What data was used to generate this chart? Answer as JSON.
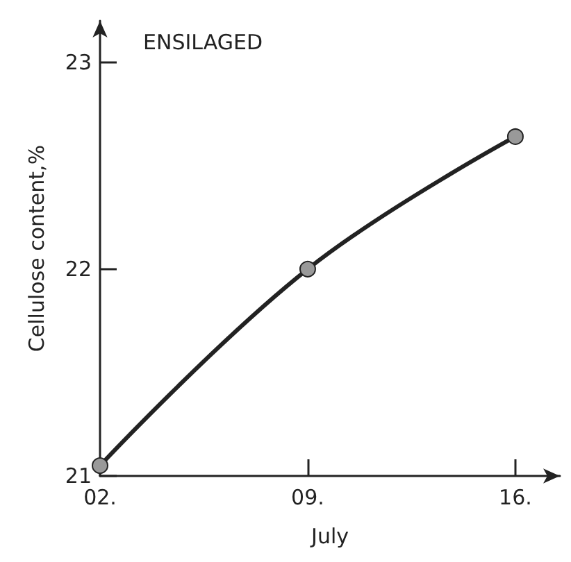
{
  "chart_data": {
    "type": "line",
    "title": "ENSILAGED",
    "xlabel": "July",
    "ylabel": "Cellulose content,%",
    "x": [
      2,
      9,
      16
    ],
    "series": [
      {
        "color": "#222222",
        "values": [
          21.05,
          22.0,
          22.64
        ]
      }
    ],
    "xlim": [
      2,
      17.5
    ],
    "xticks": [
      {
        "value": 2,
        "label": "02."
      },
      {
        "value": 9,
        "label": "09."
      },
      {
        "value": 16,
        "label": "16."
      }
    ],
    "ylim": [
      21,
      23.2
    ],
    "yticks": [
      21,
      22,
      23
    ],
    "grid": false,
    "marker": "circle",
    "line_style": "solid"
  }
}
